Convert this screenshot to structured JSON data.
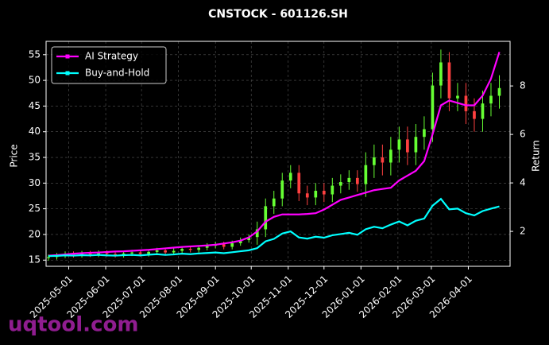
{
  "chart_data": {
    "type": "candlestick",
    "title": "CNSTOCK - 601126.SH",
    "ylabel": "Price",
    "y2label": "Return",
    "watermark": "uqtool.com",
    "legend": "upper left",
    "grid": true,
    "x": [
      "2025-04-14",
      "2025-04-21",
      "2025-04-28",
      "2025-05-05",
      "2025-05-12",
      "2025-05-19",
      "2025-05-26",
      "2025-06-02",
      "2025-06-09",
      "2025-06-16",
      "2025-06-23",
      "2025-06-30",
      "2025-07-07",
      "2025-07-14",
      "2025-07-21",
      "2025-07-28",
      "2025-08-04",
      "2025-08-11",
      "2025-08-18",
      "2025-08-25",
      "2025-09-01",
      "2025-09-08",
      "2025-09-15",
      "2025-09-22",
      "2025-09-29",
      "2025-10-06",
      "2025-10-13",
      "2025-10-20",
      "2025-10-27",
      "2025-11-03",
      "2025-11-10",
      "2025-11-17",
      "2025-11-24",
      "2025-12-01",
      "2025-12-08",
      "2025-12-15",
      "2025-12-22",
      "2025-12-29",
      "2026-01-05",
      "2026-01-12",
      "2026-01-19",
      "2026-01-26",
      "2026-02-02",
      "2026-02-09",
      "2026-02-16",
      "2026-02-23",
      "2026-03-02",
      "2026-03-09",
      "2026-03-16",
      "2026-03-23",
      "2026-03-30",
      "2026-04-06",
      "2026-04-13",
      "2026-04-20",
      "2026-04-27"
    ],
    "xlim": [
      "2025-04-12",
      "2026-05-06"
    ],
    "xticks": [
      "2025-05-01",
      "2025-06-01",
      "2025-07-01",
      "2025-08-01",
      "2025-09-01",
      "2025-10-01",
      "2025-11-01",
      "2025-12-01",
      "2026-01-01",
      "2026-02-01",
      "2026-03-01",
      "2026-04-01"
    ],
    "ylim": [
      13.8,
      57.6
    ],
    "yticks": [
      15,
      20,
      25,
      30,
      35,
      40,
      45,
      50,
      55
    ],
    "y2lim": [
      0.56,
      9.84
    ],
    "y2ticks": [
      2,
      4,
      6,
      8
    ],
    "candles": {
      "up_color": "#66ff33",
      "down_color": "#ff4040",
      "open": [
        15.4,
        15.6,
        15.9,
        16.2,
        16.0,
        16.3,
        16.1,
        16.4,
        16.2,
        16.0,
        16.3,
        16.5,
        16.2,
        16.6,
        16.9,
        16.5,
        16.8,
        17.2,
        17.0,
        17.4,
        17.8,
        18.1,
        17.6,
        18.3,
        18.9,
        19.5,
        21.0,
        25.5,
        27.0,
        30.5,
        32.0,
        28.0,
        27.2,
        28.5,
        27.8,
        29.5,
        30.2,
        31.0,
        29.8,
        33.5,
        35.0,
        34.0,
        36.5,
        38.5,
        36.0,
        39.0,
        40.5,
        49.0,
        53.5,
        46.5,
        47.0,
        44.0,
        42.5,
        45.5,
        47.0
      ],
      "high": [
        16.1,
        16.4,
        16.7,
        16.7,
        16.8,
        16.8,
        16.9,
        16.9,
        16.7,
        16.8,
        17.0,
        17.0,
        17.1,
        17.4,
        17.4,
        17.3,
        17.7,
        17.7,
        17.9,
        18.3,
        18.6,
        18.6,
        18.8,
        19.4,
        20.0,
        22.5,
        27.0,
        28.5,
        32.0,
        33.5,
        33.5,
        29.5,
        30.0,
        30.0,
        31.0,
        31.7,
        32.5,
        32.5,
        36.0,
        37.5,
        37.5,
        39.0,
        41.0,
        41.0,
        41.5,
        43.0,
        51.5,
        56.0,
        55.5,
        49.5,
        49.5,
        46.5,
        48.0,
        49.5,
        51.0
      ],
      "low": [
        14.9,
        15.1,
        15.4,
        15.5,
        15.5,
        15.6,
        15.6,
        15.7,
        15.5,
        15.5,
        15.8,
        15.7,
        15.7,
        16.1,
        16.0,
        16.0,
        16.3,
        16.5,
        16.5,
        16.9,
        17.3,
        17.1,
        17.1,
        17.8,
        18.4,
        18.0,
        19.5,
        24.0,
        25.5,
        29.0,
        26.5,
        25.7,
        25.7,
        26.3,
        26.3,
        28.0,
        28.7,
        28.3,
        27.3,
        31.0,
        31.5,
        31.5,
        34.0,
        33.5,
        33.5,
        36.5,
        38.0,
        46.5,
        44.0,
        44.0,
        41.5,
        40.0,
        40.0,
        43.0,
        44.5
      ],
      "close": [
        15.6,
        15.9,
        16.2,
        16.0,
        16.3,
        16.1,
        16.4,
        16.2,
        16.0,
        16.3,
        16.5,
        16.2,
        16.6,
        16.9,
        16.5,
        16.8,
        17.2,
        17.0,
        17.4,
        17.8,
        18.1,
        17.6,
        18.3,
        18.9,
        19.5,
        21.0,
        25.5,
        27.0,
        30.5,
        32.0,
        28.0,
        27.2,
        28.5,
        27.8,
        29.5,
        30.2,
        31.0,
        29.8,
        33.5,
        35.0,
        34.0,
        36.5,
        38.5,
        36.0,
        39.0,
        40.5,
        49.0,
        53.5,
        46.5,
        47.0,
        44.0,
        42.5,
        45.5,
        47.0,
        48.5
      ]
    },
    "series": [
      {
        "name": "AI Strategy",
        "color": "#ff00ff",
        "axis": "y2",
        "values": [
          1.0,
          1.02,
          1.05,
          1.08,
          1.1,
          1.12,
          1.13,
          1.15,
          1.17,
          1.18,
          1.2,
          1.22,
          1.24,
          1.27,
          1.3,
          1.33,
          1.36,
          1.38,
          1.4,
          1.42,
          1.45,
          1.5,
          1.55,
          1.62,
          1.75,
          2.0,
          2.4,
          2.6,
          2.7,
          2.7,
          2.7,
          2.72,
          2.75,
          2.9,
          3.1,
          3.3,
          3.4,
          3.5,
          3.6,
          3.7,
          3.75,
          3.8,
          4.1,
          4.3,
          4.5,
          4.9,
          6.0,
          7.2,
          7.4,
          7.3,
          7.2,
          7.2,
          7.6,
          8.3,
          9.4
        ]
      },
      {
        "name": "Buy-and-Hold",
        "color": "#00ffff",
        "axis": "y2",
        "values": [
          0.98,
          0.99,
          1.01,
          1.0,
          1.02,
          1.01,
          1.03,
          1.01,
          1.0,
          1.02,
          1.03,
          1.01,
          1.04,
          1.06,
          1.03,
          1.05,
          1.08,
          1.06,
          1.09,
          1.11,
          1.13,
          1.1,
          1.14,
          1.18,
          1.22,
          1.31,
          1.59,
          1.69,
          1.91,
          2.0,
          1.75,
          1.7,
          1.78,
          1.74,
          1.84,
          1.89,
          1.94,
          1.86,
          2.09,
          2.19,
          2.13,
          2.28,
          2.41,
          2.25,
          2.44,
          2.53,
          3.06,
          3.34,
          2.91,
          2.94,
          2.75,
          2.66,
          2.84,
          2.94,
          3.03
        ]
      }
    ]
  }
}
